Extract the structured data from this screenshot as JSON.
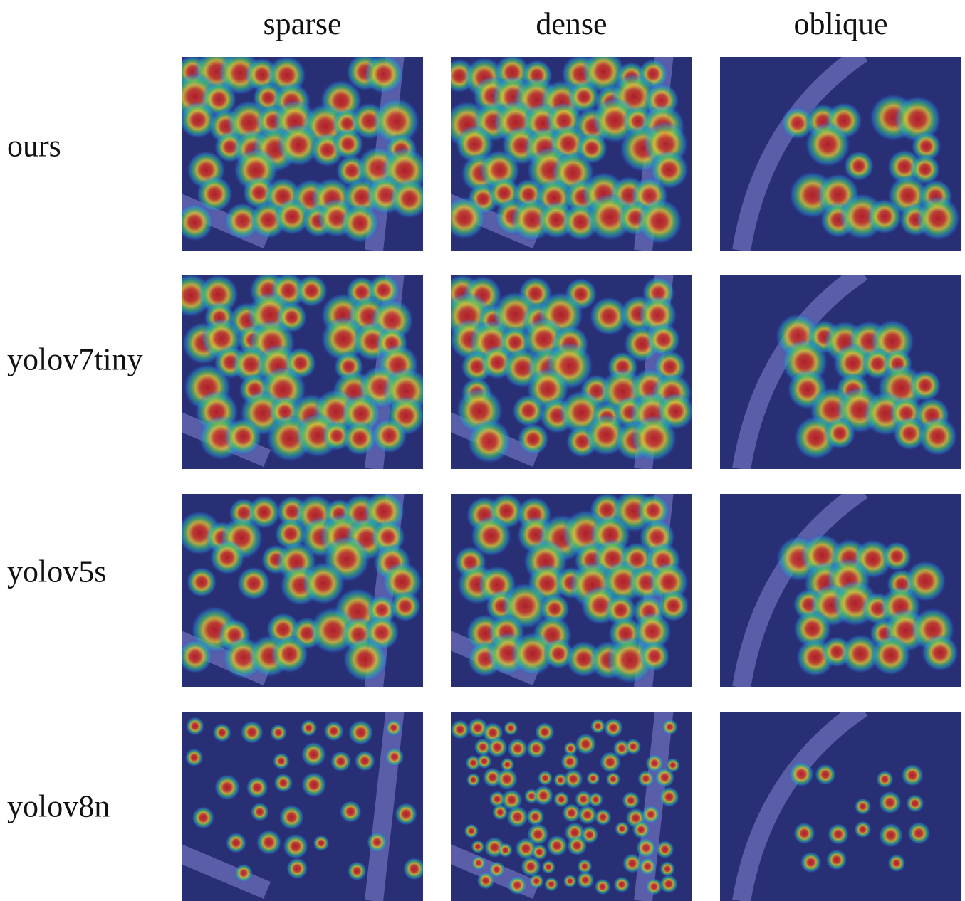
{
  "columns": [
    "sparse",
    "dense",
    "oblique"
  ],
  "rows": [
    "ours",
    "yolov7tiny",
    "yolov5s",
    "yolov8n"
  ]
}
